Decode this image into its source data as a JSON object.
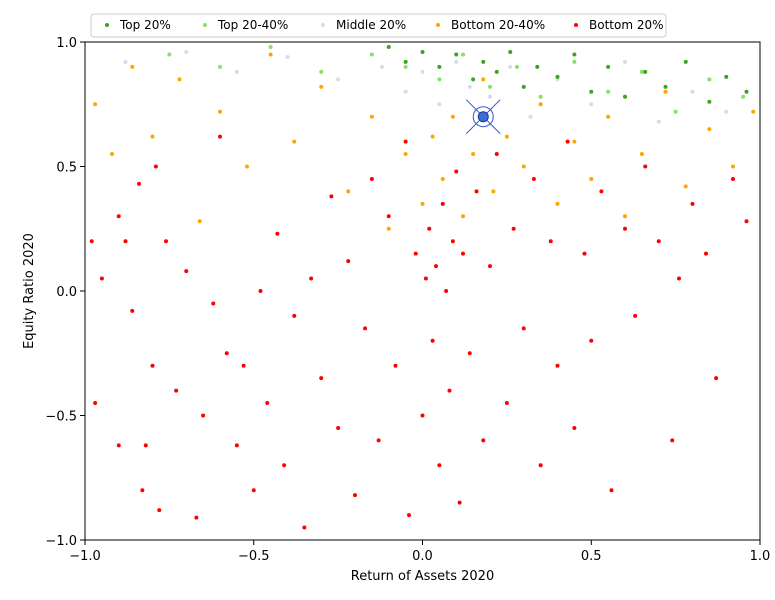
{
  "chart_data": {
    "type": "scatter",
    "xlabel": "Return of Assets 2020",
    "ylabel": "Equity Ratio 2020",
    "xlim": [
      -1.0,
      1.0
    ],
    "ylim": [
      -1.0,
      1.0
    ],
    "x_ticks": [
      "−1.0",
      "−0.5",
      "0.0",
      "0.5",
      "1.0"
    ],
    "y_ticks": [
      "−1.0",
      "−0.5",
      "0.0",
      "0.5",
      "1.0"
    ],
    "grid": false,
    "legend_position": "top",
    "highlight_point": {
      "x": 0.18,
      "y": 0.7,
      "color": "#3a6fd8"
    },
    "series": [
      {
        "name": "Bottom 20%",
        "color": "#ff0000",
        "points": [
          [
            -0.98,
            0.2
          ],
          [
            -0.97,
            -0.45
          ],
          [
            -0.95,
            0.05
          ],
          [
            -0.9,
            0.3
          ],
          [
            -0.9,
            -0.62
          ],
          [
            -0.88,
            0.2
          ],
          [
            -0.86,
            -0.08
          ],
          [
            -0.84,
            0.43
          ],
          [
            -0.83,
            -0.8
          ],
          [
            -0.82,
            -0.62
          ],
          [
            -0.8,
            -0.3
          ],
          [
            -0.79,
            0.5
          ],
          [
            -0.78,
            -0.88
          ],
          [
            -0.76,
            0.2
          ],
          [
            -0.73,
            -0.4
          ],
          [
            -0.7,
            0.08
          ],
          [
            -0.67,
            -0.91
          ],
          [
            -0.65,
            -0.5
          ],
          [
            -0.62,
            -0.05
          ],
          [
            -0.6,
            0.62
          ],
          [
            -0.58,
            -0.25
          ],
          [
            -0.55,
            -0.62
          ],
          [
            -0.53,
            -0.3
          ],
          [
            -0.5,
            -0.8
          ],
          [
            -0.48,
            0.0
          ],
          [
            -0.46,
            -0.45
          ],
          [
            -0.43,
            0.23
          ],
          [
            -0.41,
            -0.7
          ],
          [
            -0.38,
            -0.1
          ],
          [
            -0.35,
            -0.95
          ],
          [
            -0.33,
            0.05
          ],
          [
            -0.3,
            -0.35
          ],
          [
            -0.27,
            0.38
          ],
          [
            -0.25,
            -0.55
          ],
          [
            -0.22,
            0.12
          ],
          [
            -0.2,
            -0.82
          ],
          [
            -0.17,
            -0.15
          ],
          [
            -0.15,
            0.45
          ],
          [
            -0.13,
            -0.6
          ],
          [
            -0.1,
            0.3
          ],
          [
            -0.08,
            -0.3
          ],
          [
            -0.05,
            0.6
          ],
          [
            -0.04,
            -0.9
          ],
          [
            -0.02,
            0.15
          ],
          [
            0.0,
            -0.5
          ],
          [
            0.01,
            0.05
          ],
          [
            0.02,
            0.25
          ],
          [
            0.03,
            -0.2
          ],
          [
            0.04,
            0.1
          ],
          [
            0.05,
            -0.7
          ],
          [
            0.06,
            0.35
          ],
          [
            0.07,
            0.0
          ],
          [
            0.08,
            -0.4
          ],
          [
            0.09,
            0.2
          ],
          [
            0.1,
            0.48
          ],
          [
            0.11,
            -0.85
          ],
          [
            0.12,
            0.15
          ],
          [
            0.14,
            -0.25
          ],
          [
            0.16,
            0.4
          ],
          [
            0.18,
            -0.6
          ],
          [
            0.2,
            0.1
          ],
          [
            0.22,
            0.55
          ],
          [
            0.25,
            -0.45
          ],
          [
            0.27,
            0.25
          ],
          [
            0.3,
            -0.15
          ],
          [
            0.33,
            0.45
          ],
          [
            0.35,
            -0.7
          ],
          [
            0.38,
            0.2
          ],
          [
            0.4,
            -0.3
          ],
          [
            0.43,
            0.6
          ],
          [
            0.45,
            -0.55
          ],
          [
            0.48,
            0.15
          ],
          [
            0.5,
            -0.2
          ],
          [
            0.53,
            0.4
          ],
          [
            0.56,
            -0.8
          ],
          [
            0.6,
            0.25
          ],
          [
            0.63,
            -0.1
          ],
          [
            0.66,
            0.5
          ],
          [
            0.7,
            0.2
          ],
          [
            0.74,
            -0.6
          ],
          [
            0.76,
            0.05
          ],
          [
            0.8,
            0.35
          ],
          [
            0.84,
            0.15
          ],
          [
            0.87,
            -0.35
          ],
          [
            0.92,
            0.45
          ],
          [
            0.96,
            0.28
          ]
        ]
      },
      {
        "name": "Bottom 20-40%",
        "color": "#ffa500",
        "points": [
          [
            -0.97,
            0.75
          ],
          [
            -0.92,
            0.55
          ],
          [
            -0.86,
            0.9
          ],
          [
            -0.8,
            0.62
          ],
          [
            -0.72,
            0.85
          ],
          [
            -0.66,
            0.28
          ],
          [
            -0.6,
            0.72
          ],
          [
            -0.52,
            0.5
          ],
          [
            -0.45,
            0.95
          ],
          [
            -0.38,
            0.6
          ],
          [
            -0.3,
            0.82
          ],
          [
            -0.22,
            0.4
          ],
          [
            -0.15,
            0.7
          ],
          [
            -0.1,
            0.25
          ],
          [
            -0.05,
            0.55
          ],
          [
            0.0,
            0.35
          ],
          [
            0.03,
            0.62
          ],
          [
            0.06,
            0.45
          ],
          [
            0.09,
            0.7
          ],
          [
            0.12,
            0.3
          ],
          [
            0.15,
            0.55
          ],
          [
            0.18,
            0.85
          ],
          [
            0.21,
            0.4
          ],
          [
            0.25,
            0.62
          ],
          [
            0.3,
            0.5
          ],
          [
            0.35,
            0.75
          ],
          [
            0.4,
            0.35
          ],
          [
            0.45,
            0.6
          ],
          [
            0.5,
            0.45
          ],
          [
            0.55,
            0.7
          ],
          [
            0.6,
            0.3
          ],
          [
            0.65,
            0.55
          ],
          [
            0.72,
            0.8
          ],
          [
            0.78,
            0.42
          ],
          [
            0.85,
            0.65
          ],
          [
            0.92,
            0.5
          ],
          [
            0.98,
            0.72
          ]
        ]
      },
      {
        "name": "Middle 20%",
        "color": "#d8d8f0",
        "points": [
          [
            -0.88,
            0.92
          ],
          [
            -0.7,
            0.96
          ],
          [
            -0.55,
            0.88
          ],
          [
            -0.4,
            0.94
          ],
          [
            -0.25,
            0.85
          ],
          [
            -0.12,
            0.9
          ],
          [
            -0.05,
            0.8
          ],
          [
            0.0,
            0.88
          ],
          [
            0.05,
            0.75
          ],
          [
            0.1,
            0.92
          ],
          [
            0.14,
            0.82
          ],
          [
            0.2,
            0.78
          ],
          [
            0.26,
            0.9
          ],
          [
            0.32,
            0.7
          ],
          [
            0.4,
            0.85
          ],
          [
            0.5,
            0.75
          ],
          [
            0.6,
            0.92
          ],
          [
            0.7,
            0.68
          ],
          [
            0.8,
            0.8
          ],
          [
            0.9,
            0.72
          ]
        ]
      },
      {
        "name": "Top 20-40%",
        "color": "#88e066",
        "points": [
          [
            -0.75,
            0.95
          ],
          [
            -0.6,
            0.9
          ],
          [
            -0.45,
            0.98
          ],
          [
            -0.3,
            0.88
          ],
          [
            -0.15,
            0.95
          ],
          [
            -0.05,
            0.9
          ],
          [
            0.05,
            0.85
          ],
          [
            0.12,
            0.95
          ],
          [
            0.2,
            0.82
          ],
          [
            0.28,
            0.9
          ],
          [
            0.35,
            0.78
          ],
          [
            0.45,
            0.92
          ],
          [
            0.55,
            0.8
          ],
          [
            0.65,
            0.88
          ],
          [
            0.75,
            0.72
          ],
          [
            0.85,
            0.85
          ],
          [
            0.95,
            0.78
          ]
        ]
      },
      {
        "name": "Top 20%",
        "color": "#3aa520",
        "points": [
          [
            -0.1,
            0.98
          ],
          [
            -0.05,
            0.92
          ],
          [
            0.0,
            0.96
          ],
          [
            0.05,
            0.9
          ],
          [
            0.1,
            0.95
          ],
          [
            0.15,
            0.85
          ],
          [
            0.18,
            0.92
          ],
          [
            0.22,
            0.88
          ],
          [
            0.26,
            0.96
          ],
          [
            0.3,
            0.82
          ],
          [
            0.34,
            0.9
          ],
          [
            0.4,
            0.86
          ],
          [
            0.45,
            0.95
          ],
          [
            0.5,
            0.8
          ],
          [
            0.55,
            0.9
          ],
          [
            0.6,
            0.78
          ],
          [
            0.66,
            0.88
          ],
          [
            0.72,
            0.82
          ],
          [
            0.78,
            0.92
          ],
          [
            0.85,
            0.76
          ],
          [
            0.9,
            0.86
          ],
          [
            0.96,
            0.8
          ]
        ]
      }
    ],
    "legend": [
      "Top 20%",
      "Top 20-40%",
      "Middle 20%",
      "Bottom 20-40%",
      "Bottom 20%"
    ]
  }
}
